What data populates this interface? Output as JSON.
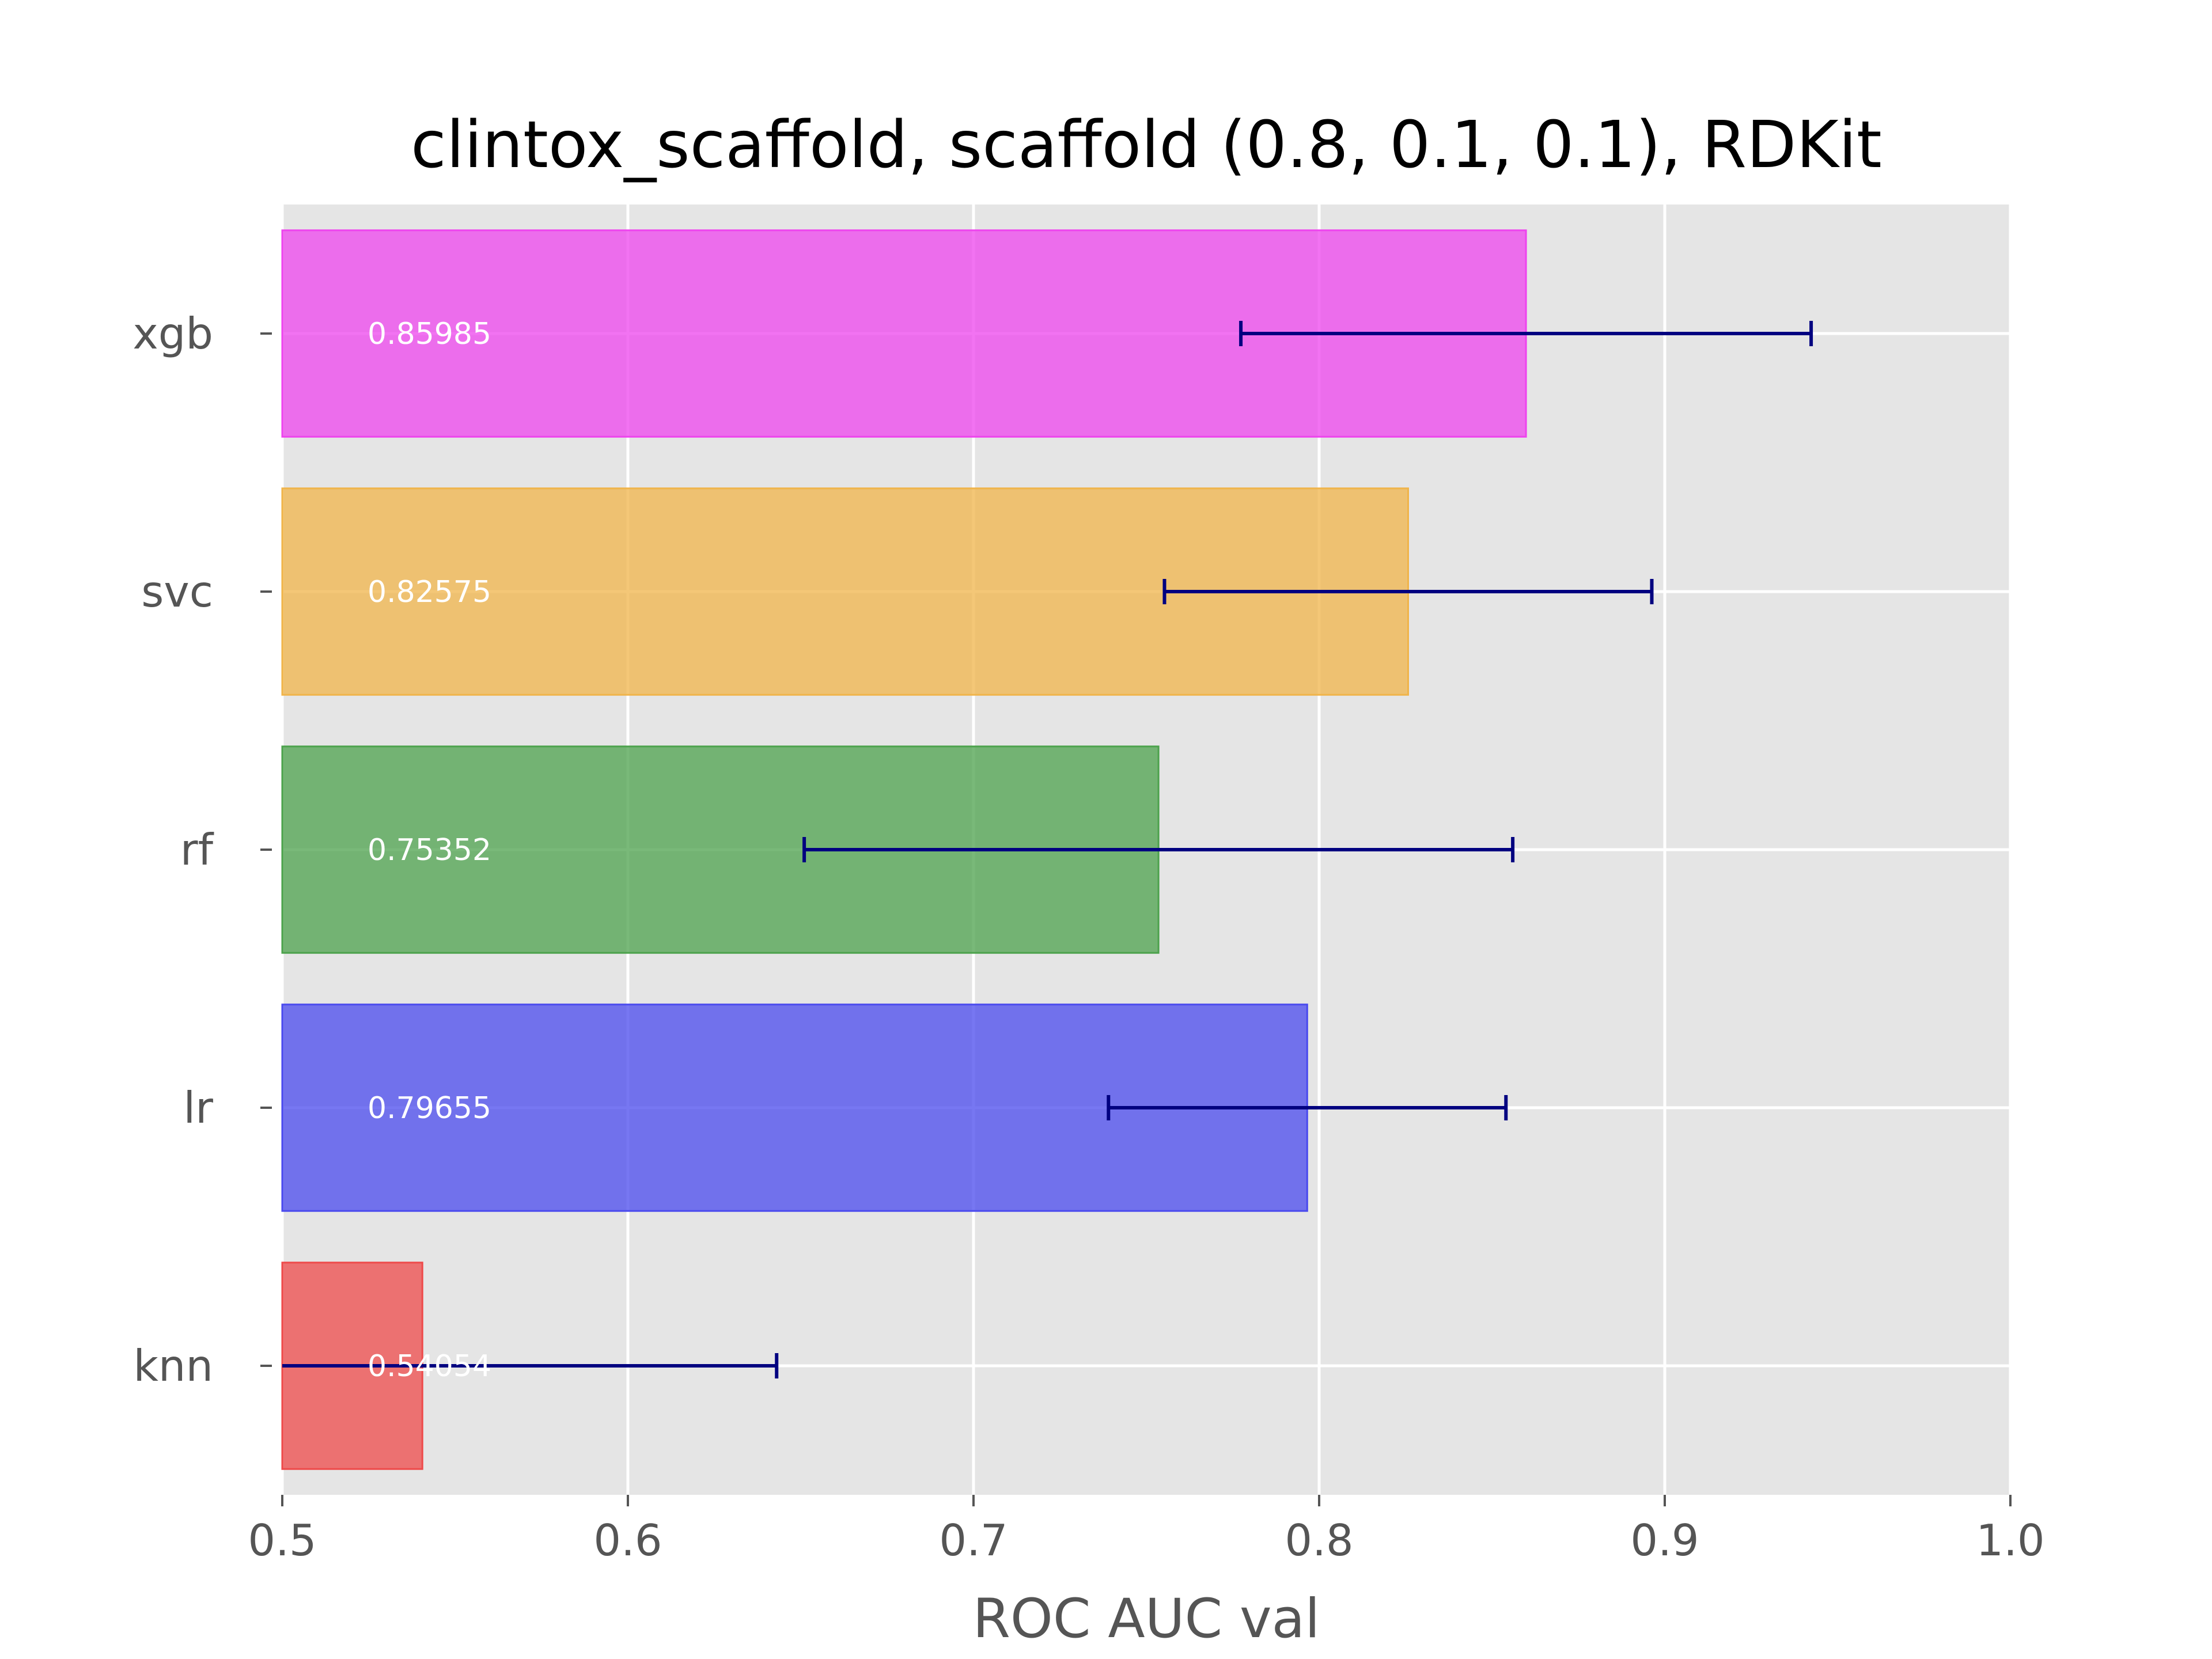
{
  "chart_data": {
    "type": "bar",
    "orientation": "horizontal",
    "title": "clintox_scaffold, scaffold (0.8, 0.1, 0.1), RDKit",
    "xlabel": "ROC AUC val",
    "ylabel": "",
    "xlim": [
      0.5,
      1.0
    ],
    "xticks": [
      "0.5",
      "0.6",
      "0.7",
      "0.8",
      "0.9",
      "1.0"
    ],
    "grid": true,
    "legend": "none",
    "categories": [
      "xgb",
      "svc",
      "rf",
      "lr",
      "knn"
    ],
    "values": [
      0.85985,
      0.82575,
      0.75352,
      0.79655,
      0.54054
    ],
    "value_labels": [
      "0.85985",
      "0.82575",
      "0.75352",
      "0.79655",
      "0.54054"
    ],
    "errors": [
      0.0825,
      0.0705,
      0.1025,
      0.0575,
      0.1025
    ],
    "colors": [
      "#ee44ee",
      "#f0b44a",
      "#4ca24c",
      "#4a4aee",
      "#ee4a4a"
    ],
    "error_color": "#000080",
    "background_color": "#e5e5e5"
  }
}
